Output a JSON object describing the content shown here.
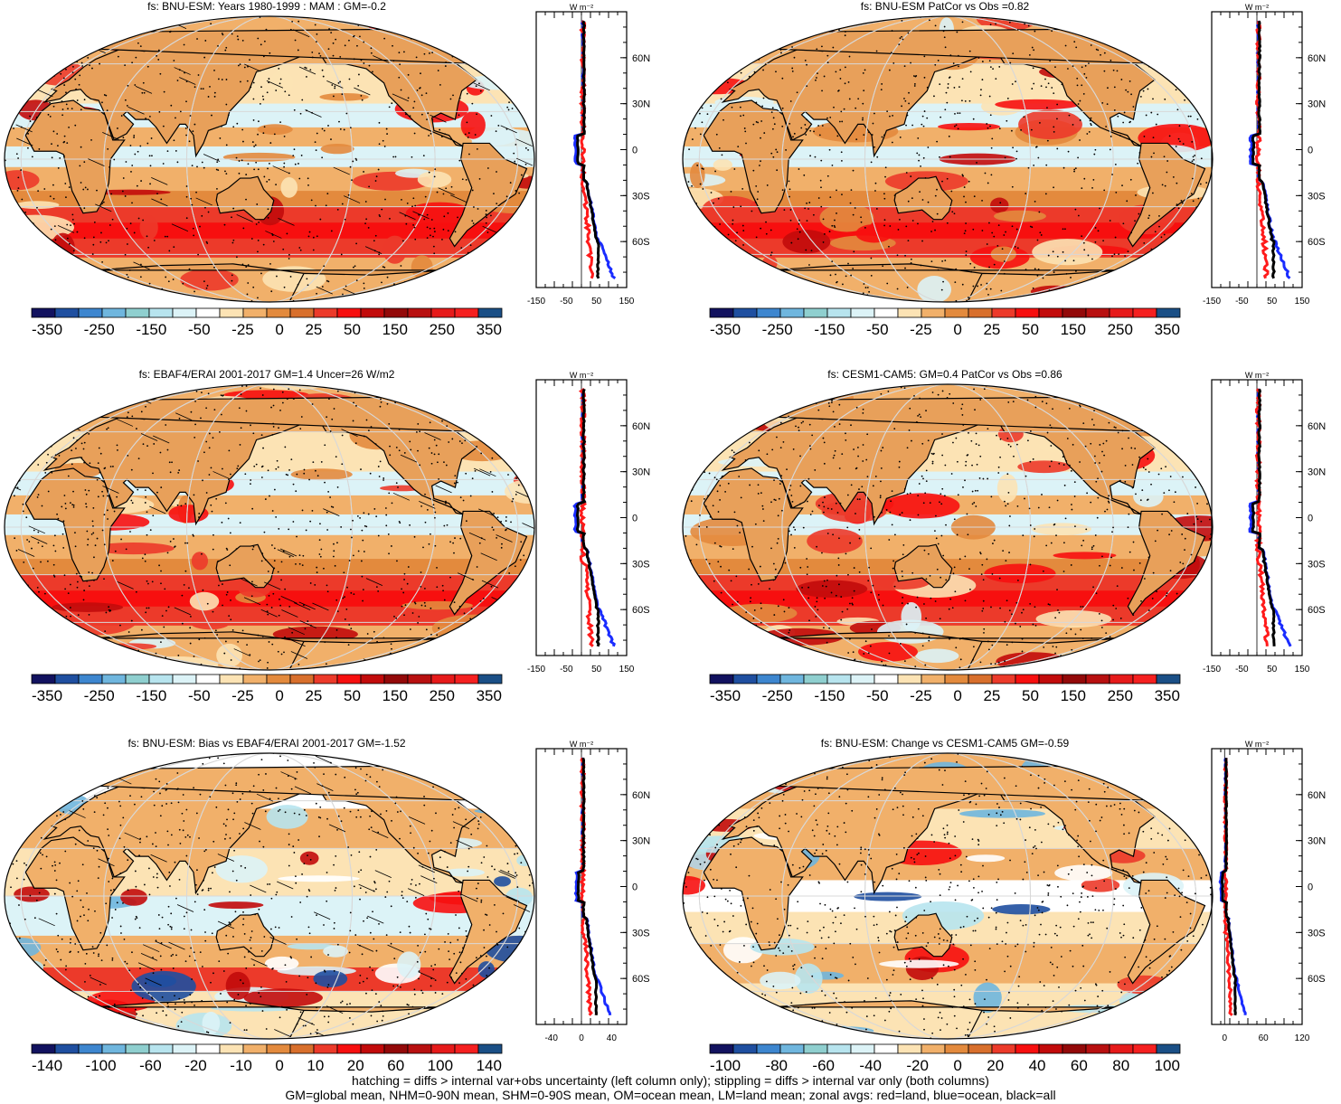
{
  "panels": [
    {
      "id": "a",
      "title": "fs: BNU-ESM: Years 1980-1999 : MAM : GM=-0.2",
      "cb_labels": [
        "-350",
        "-250",
        "-150",
        "-50",
        "-25",
        "0",
        "25",
        "50",
        "150",
        "250",
        "350"
      ],
      "zonal_ticks": [
        "-150",
        "-50",
        "50",
        "150"
      ],
      "zonal_range": [
        -150,
        150
      ],
      "zonal_unit": "W m⁻²",
      "hatching": true,
      "stippling": true,
      "kind": "mean"
    },
    {
      "id": "b",
      "title": "fs: BNU-ESM PatCor vs Obs =0.82",
      "cb_labels": [
        "-350",
        "-250",
        "-150",
        "-50",
        "-25",
        "0",
        "25",
        "50",
        "150",
        "250",
        "350"
      ],
      "zonal_ticks": [
        "-150",
        "-50",
        "50",
        "150"
      ],
      "zonal_range": [
        -150,
        150
      ],
      "zonal_unit": "W m⁻²",
      "hatching": false,
      "stippling": true,
      "kind": "mean"
    },
    {
      "id": "c",
      "title": "fs: EBAF4/ERAI 2001-2017 GM=1.4 Uncer=26 W/m2",
      "cb_labels": [
        "-350",
        "-250",
        "-150",
        "-50",
        "-25",
        "0",
        "25",
        "50",
        "150",
        "250",
        "350"
      ],
      "zonal_ticks": [
        "-150",
        "-50",
        "50",
        "150"
      ],
      "zonal_range": [
        -150,
        150
      ],
      "zonal_unit": "W m⁻²",
      "hatching": true,
      "stippling": true,
      "kind": "mean"
    },
    {
      "id": "d",
      "title": "fs: CESM1-CAM5: GM=0.4 PatCor vs Obs =0.86",
      "cb_labels": [
        "-350",
        "-250",
        "-150",
        "-50",
        "-25",
        "0",
        "25",
        "50",
        "150",
        "250",
        "350"
      ],
      "zonal_ticks": [
        "-150",
        "-50",
        "50",
        "150"
      ],
      "zonal_range": [
        -150,
        150
      ],
      "zonal_unit": "W m⁻²",
      "hatching": false,
      "stippling": true,
      "kind": "mean"
    },
    {
      "id": "e",
      "title": "fs: BNU-ESM: Bias vs EBAF4/ERAI 2001-2017 GM=-1.52",
      "cb_labels": [
        "-140",
        "-100",
        "-60",
        "-20",
        "-10",
        "0",
        "10",
        "20",
        "60",
        "100",
        "140"
      ],
      "zonal_ticks": [
        "-40",
        "0",
        "40"
      ],
      "zonal_range": [
        -60,
        60
      ],
      "zonal_unit": "W m⁻²",
      "hatching": true,
      "stippling": true,
      "kind": "bias"
    },
    {
      "id": "f",
      "title": "fs: BNU-ESM: Change vs CESM1-CAM5 GM=-0.59",
      "cb_labels": [
        "-100",
        "-80",
        "-60",
        "-40",
        "-20",
        "0",
        "20",
        "40",
        "60",
        "80",
        "100"
      ],
      "zonal_ticks": [
        "0",
        "60",
        "120"
      ],
      "zonal_range": [
        -20,
        120
      ],
      "zonal_unit": "W m⁻²",
      "hatching": false,
      "stippling": true,
      "kind": "change"
    }
  ],
  "lat_labels": [
    "60N",
    "30N",
    "0",
    "30S",
    "60S"
  ],
  "colorbar_colors": [
    "#12125f",
    "#1f4fa0",
    "#3d86cf",
    "#6fb6de",
    "#8fcfcf",
    "#b7e4ee",
    "#dcf3f7",
    "#ffffff",
    "#fce3b4",
    "#f1b06a",
    "#e38a3d",
    "#d86f2c",
    "#ec3a2a",
    "#f70f0f",
    "#c20b0b",
    "#930909",
    "#b81010",
    "#e61a1a",
    "#f52020",
    "#1a4f86"
  ],
  "zonal_colors": {
    "land": "#ff1a1a",
    "ocean": "#1a2cff",
    "all": "#000000"
  },
  "footer": {
    "line1": "hatching = diffs > internal var+obs uncertainty (left column only); stippling = diffs > internal var only (both columns)",
    "line2": "GM=global mean, NHM=0-90N mean, SHM=0-90S mean, OM=ocean mean, LM=land mean; zonal avgs: red=land, blue=ocean, black=all"
  }
}
